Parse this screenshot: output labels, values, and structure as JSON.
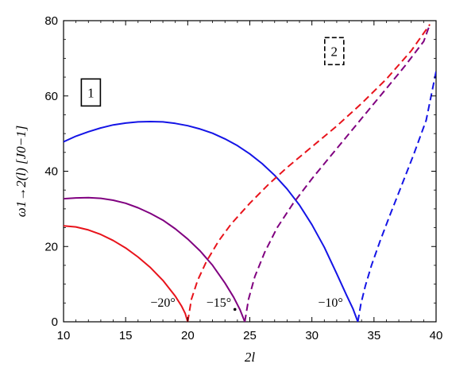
{
  "chart_data": {
    "type": "line",
    "title": "",
    "xlabel": "2l",
    "ylabel": "ω1→2(l)  [J0−1]",
    "xlim": [
      10,
      40
    ],
    "ylim": [
      0,
      80
    ],
    "xticks": [
      "10",
      "15",
      "20",
      "25",
      "30",
      "35",
      "40"
    ],
    "yticks": [
      "0",
      "20",
      "40",
      "60",
      "80"
    ],
    "grid": false,
    "series": [
      {
        "style": "solid",
        "color": "#e8131b",
        "x": [
          10,
          11,
          12,
          13,
          14,
          15,
          16,
          17,
          18,
          19,
          19.5,
          19.8,
          20.0
        ],
        "y": [
          25.5,
          25.2,
          24.4,
          23.2,
          21.6,
          19.6,
          17.2,
          14.4,
          11.0,
          6.8,
          4.2,
          2.2,
          0
        ]
      },
      {
        "style": "solid",
        "color": "#800080",
        "x": [
          10,
          11,
          12,
          13,
          14,
          15,
          16,
          17,
          18,
          19,
          20,
          21,
          22,
          23,
          23.7,
          24.2,
          24.6
        ],
        "y": [
          32.7,
          32.9,
          33.0,
          32.8,
          32.3,
          31.5,
          30.3,
          28.8,
          27.0,
          24.7,
          22.0,
          18.8,
          15.0,
          10.3,
          6.5,
          3.3,
          0
        ]
      },
      {
        "style": "solid",
        "color": "#1414e6",
        "x": [
          10,
          11,
          12,
          13,
          14,
          15,
          16,
          17,
          18,
          19,
          20,
          21,
          22,
          23,
          24,
          25,
          26,
          27,
          28,
          29,
          30,
          31,
          32,
          32.8,
          33.3,
          33.7
        ],
        "y": [
          47.8,
          49.3,
          50.5,
          51.5,
          52.3,
          52.8,
          53.1,
          53.2,
          53.1,
          52.7,
          52.1,
          51.2,
          50.1,
          48.6,
          46.8,
          44.6,
          42.0,
          38.9,
          35.3,
          31.0,
          25.8,
          19.8,
          12.8,
          7.0,
          3.5,
          0
        ]
      },
      {
        "style": "dashed",
        "color": "#e8131b",
        "x": [
          20.0,
          20.3,
          20.8,
          21.5,
          22.5,
          23.5,
          25,
          26.5,
          28,
          30,
          32,
          34,
          36,
          38,
          39.5
        ],
        "y": [
          0,
          6,
          11,
          16,
          21.5,
          26,
          31.5,
          36.5,
          41,
          46.5,
          52,
          58,
          64.5,
          72,
          79
        ]
      },
      {
        "style": "dashed",
        "color": "#800080",
        "x": [
          24.6,
          24.9,
          25.4,
          26.2,
          27.2,
          28.5,
          30,
          31.5,
          33,
          34.5,
          36,
          37.5,
          39,
          39.5
        ],
        "y": [
          0,
          6,
          12,
          18.5,
          25,
          31.5,
          38,
          44,
          50,
          56,
          62,
          68,
          74.5,
          79
        ]
      },
      {
        "style": "dashed",
        "color": "#1414e6",
        "x": [
          33.7,
          33.95,
          34.3,
          34.8,
          35.5,
          36.3,
          37.2,
          38.2,
          39.2,
          40
        ],
        "y": [
          0,
          4.8,
          9.5,
          15,
          21.5,
          28.5,
          36,
          44.5,
          53.5,
          66.5
        ]
      }
    ],
    "annotations": [
      {
        "text": "−20°",
        "x": 18.0,
        "y": 4
      },
      {
        "text": "−15°",
        "x": 22.5,
        "y": 4
      },
      {
        "text": "−10°",
        "x": 31.5,
        "y": 4
      }
    ],
    "markers": [
      {
        "x": 23.8,
        "y": 3.3
      }
    ],
    "boxes": [
      {
        "text": "1",
        "style": "solid",
        "x": 12.2,
        "y": 60.5
      },
      {
        "text": "2",
        "style": "dashed",
        "x": 31.8,
        "y": 71.5
      }
    ]
  }
}
